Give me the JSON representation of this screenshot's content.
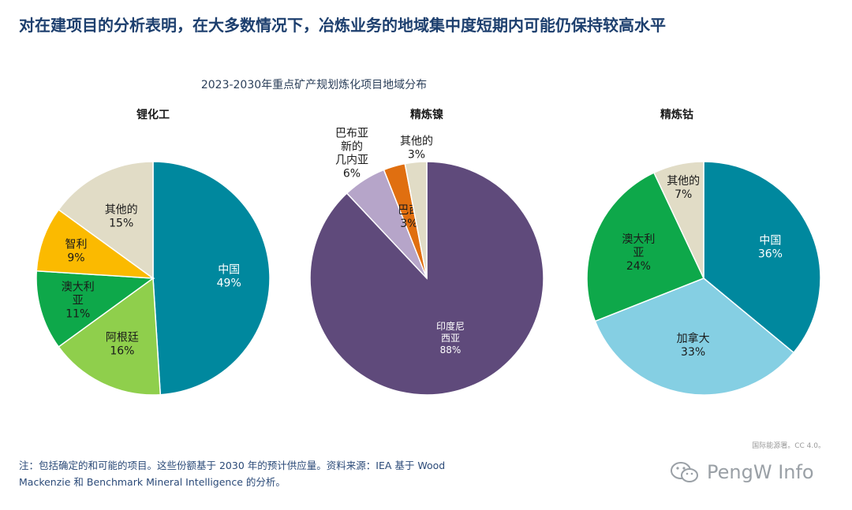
{
  "headline": "对在建项目的分析表明，在大多数情况下，冶炼业务的地域集中度短期内可能仍保持较高水平",
  "subtitle": "2023-2030年重点矿产规划炼化项目地域分布",
  "note": "注：包括确定的和可能的项目。这些份额基于 2030 年的预计供应量。资料来源：IEA 基于 Wood Mackenzie 和 Benchmark Mineral Intelligence 的分析。",
  "credit": "国际能源署。CC 4.0。",
  "watermark": "PengW Info",
  "chart_data": [
    {
      "type": "pie",
      "title": "锂化工",
      "unit": "%",
      "slices": [
        {
          "label": "中国",
          "value": 49,
          "color": "#00889e"
        },
        {
          "label": "阿根廷",
          "value": 16,
          "color": "#8fcf4c"
        },
        {
          "label": "澳大利亚",
          "value": 11,
          "color": "#0ea84a"
        },
        {
          "label": "智利",
          "value": 9,
          "color": "#fbba00"
        },
        {
          "label": "其他的",
          "value": 15,
          "color": "#e1dcc6"
        }
      ]
    },
    {
      "type": "pie",
      "title": "精炼镍",
      "unit": "%",
      "slices": [
        {
          "label": "印度尼西亚",
          "value": 88,
          "color": "#5f4a7b"
        },
        {
          "label": "巴布亚新的几内亚",
          "value": 6,
          "color": "#b6a5c9"
        },
        {
          "label": "巴西",
          "value": 3,
          "color": "#e06f10"
        },
        {
          "label": "其他的",
          "value": 3,
          "color": "#e1dcc6"
        }
      ]
    },
    {
      "type": "pie",
      "title": "精炼钴",
      "unit": "%",
      "slices": [
        {
          "label": "中国",
          "value": 36,
          "color": "#00889e"
        },
        {
          "label": "加拿大",
          "value": 33,
          "color": "#85cfe3"
        },
        {
          "label": "澳大利亚",
          "value": 24,
          "color": "#0ea84a"
        },
        {
          "label": "其他的",
          "value": 7,
          "color": "#e1dcc6"
        }
      ]
    }
  ]
}
